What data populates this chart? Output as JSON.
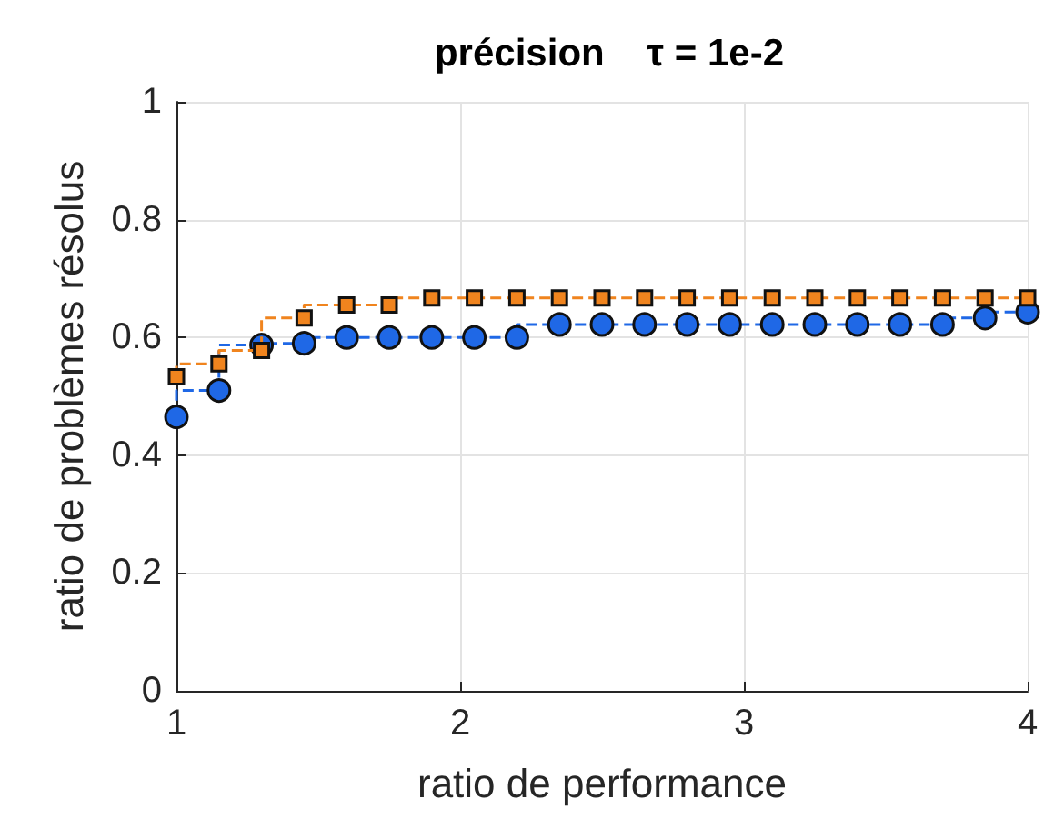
{
  "chart_data": {
    "type": "step",
    "title": "précision    τ = 1e-2",
    "xlabel": "ratio de performance",
    "ylabel": "ratio de problèmes résolus",
    "x": [
      1,
      1.15,
      1.3,
      1.45,
      1.6,
      1.75,
      1.9,
      2.05,
      2.2,
      2.35,
      2.5,
      2.65,
      2.8,
      2.95,
      3.1,
      3.25,
      3.4,
      3.55,
      3.7,
      3.85,
      4
    ],
    "series": [
      {
        "color": "#f0841e",
        "marker": "square",
        "values": [
          0.533,
          0.555,
          0.578,
          0.633,
          0.655,
          0.655,
          0.667,
          0.667,
          0.667,
          0.667,
          0.667,
          0.667,
          0.667,
          0.667,
          0.667,
          0.667,
          0.667,
          0.667,
          0.667,
          0.667,
          0.667
        ]
      },
      {
        "color": "#1f68e6",
        "marker": "circle",
        "values": [
          0.465,
          0.51,
          0.587,
          0.59,
          0.6,
          0.6,
          0.6,
          0.6,
          0.6,
          0.622,
          0.622,
          0.622,
          0.622,
          0.622,
          0.622,
          0.622,
          0.622,
          0.622,
          0.622,
          0.633,
          0.643
        ]
      }
    ],
    "xlim": [
      1,
      4
    ],
    "xticks": [
      1,
      2,
      3,
      4
    ],
    "ylim": [
      0,
      1
    ],
    "yticks": [
      0,
      0.2,
      0.4,
      0.6,
      0.8,
      1
    ],
    "grid": true,
    "line_style": "dashed"
  }
}
